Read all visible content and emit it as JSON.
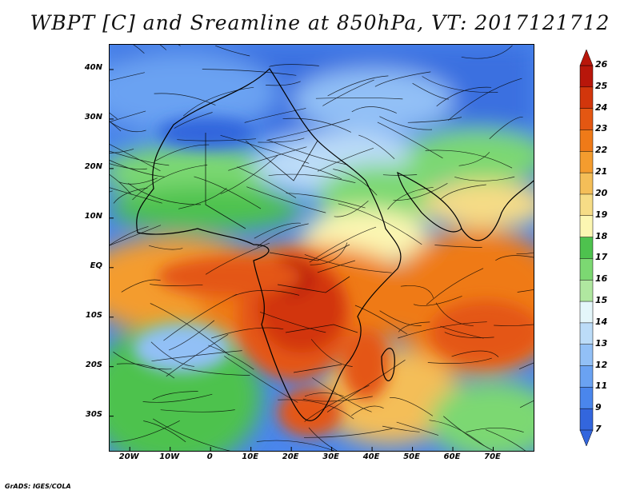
{
  "title": "WBPT [C] and Sreamline at 850hPa, VT: 2017121712",
  "footer": "GrADS: IGES/COLA",
  "map": {
    "lon_range": [
      -25,
      80
    ],
    "lat_range": [
      -37,
      45
    ],
    "y_axis_labels": [
      {
        "text": "40N",
        "lat": 40
      },
      {
        "text": "30N",
        "lat": 30
      },
      {
        "text": "20N",
        "lat": 20
      },
      {
        "text": "10N",
        "lat": 10
      },
      {
        "text": "EQ",
        "lat": 0
      },
      {
        "text": "10S",
        "lat": -10
      },
      {
        "text": "20S",
        "lat": -20
      },
      {
        "text": "30S",
        "lat": -30
      }
    ],
    "x_axis_labels": [
      {
        "text": "20W",
        "lon": -20
      },
      {
        "text": "10W",
        "lon": -10
      },
      {
        "text": "0",
        "lon": 0
      },
      {
        "text": "10E",
        "lon": 10
      },
      {
        "text": "20E",
        "lon": 20
      },
      {
        "text": "30E",
        "lon": 30
      },
      {
        "text": "40E",
        "lon": 40
      },
      {
        "text": "50E",
        "lon": 50
      },
      {
        "text": "60E",
        "lon": 60
      },
      {
        "text": "70E",
        "lon": 70
      }
    ]
  },
  "colorbar": {
    "levels": [
      "7",
      "9",
      "11",
      "12",
      "13",
      "14",
      "15",
      "16",
      "17",
      "18",
      "19",
      "20",
      "21",
      "22",
      "23",
      "24",
      "25",
      "26"
    ],
    "colors": [
      "#3366dd",
      "#4a86ec",
      "#6aa2f2",
      "#92c0f6",
      "#bcdcf8",
      "#e4f6fa",
      "#b0e7a0",
      "#7cd872",
      "#4ec24e",
      "#fcf6b2",
      "#f6dc86",
      "#f4be58",
      "#f49c2e",
      "#ef7a18",
      "#e45712",
      "#d2360c",
      "#b8160a"
    ]
  }
}
